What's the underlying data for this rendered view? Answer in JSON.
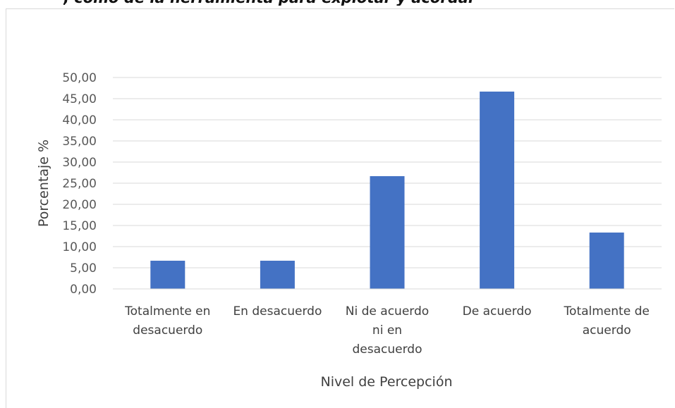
{
  "header_fragment": ", como de la herramienta para explotar y acordar ...",
  "chart_data": {
    "type": "bar",
    "title": "",
    "categories": [
      [
        "Totalmente en",
        "desacuerdo"
      ],
      [
        "En desacuerdo"
      ],
      [
        "Ni de acuerdo",
        "ni en",
        "desacuerdo"
      ],
      [
        "De acuerdo"
      ],
      [
        "Totalmente de",
        "acuerdo"
      ]
    ],
    "values": [
      6.67,
      6.67,
      26.67,
      46.67,
      13.33
    ],
    "xlabel": "Nivel de Percepción",
    "ylabel": "Porcentaje %",
    "ylim": [
      0,
      50
    ],
    "yticks": [
      "0,00",
      "5,00",
      "10,00",
      "15,00",
      "20,00",
      "25,00",
      "30,00",
      "35,00",
      "40,00",
      "45,00",
      "50,00"
    ],
    "grid": true,
    "bar_color": "#4472C4",
    "grid_color": "#d9d9d9"
  }
}
